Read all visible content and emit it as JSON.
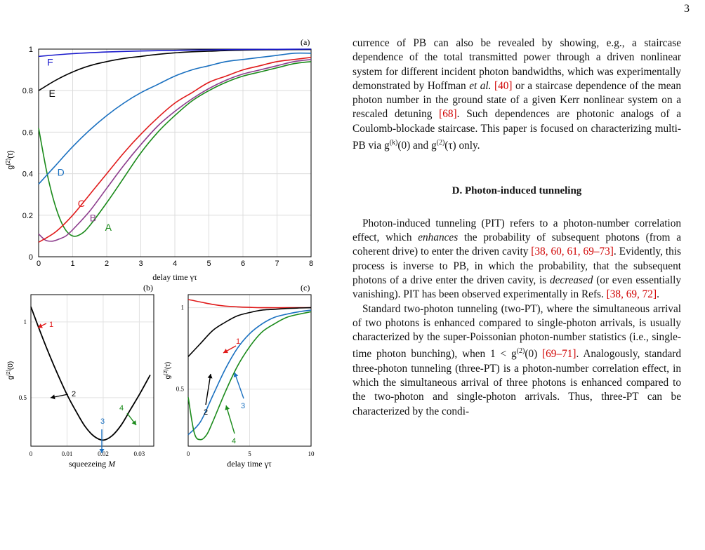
{
  "page_number": "3",
  "colors": {
    "A": "#1a8a1a",
    "B": "#8c3c8c",
    "C": "#e01a1a",
    "D": "#1a70c0",
    "E": "#000000",
    "F": "#1a1acc",
    "cite": "#d00000"
  },
  "chart_data": [
    {
      "panel": "(a)",
      "type": "line",
      "xlabel": "delay time γτ",
      "ylabel": "g(2)(τ)",
      "xlim": [
        0,
        8
      ],
      "ylim": [
        0,
        1
      ],
      "xticks": [
        "0",
        "1",
        "2",
        "3",
        "4",
        "5",
        "6",
        "7",
        "8"
      ],
      "yticks": [
        "0",
        "0.2",
        "0.4",
        "0.6",
        "0.8",
        "1"
      ],
      "grid": true,
      "series": [
        {
          "name": "A",
          "x": [
            0,
            0.25,
            0.5,
            0.75,
            1,
            1.25,
            1.5,
            2,
            2.5,
            3,
            3.5,
            4,
            4.5,
            5,
            5.5,
            6,
            6.5,
            7,
            7.5,
            8
          ],
          "y": [
            0.62,
            0.4,
            0.24,
            0.14,
            0.1,
            0.11,
            0.15,
            0.26,
            0.38,
            0.5,
            0.6,
            0.68,
            0.75,
            0.8,
            0.84,
            0.87,
            0.89,
            0.91,
            0.93,
            0.94
          ]
        },
        {
          "name": "B",
          "x": [
            0,
            0.2,
            0.4,
            0.6,
            0.8,
            1,
            1.5,
            2,
            2.5,
            3,
            3.5,
            4,
            4.5,
            5,
            5.5,
            6,
            6.5,
            7,
            7.5,
            8
          ],
          "y": [
            0.11,
            0.08,
            0.075,
            0.085,
            0.1,
            0.13,
            0.22,
            0.33,
            0.44,
            0.54,
            0.63,
            0.7,
            0.76,
            0.81,
            0.85,
            0.88,
            0.9,
            0.92,
            0.94,
            0.95
          ]
        },
        {
          "name": "C",
          "x": [
            0,
            0.5,
            1,
            1.5,
            2,
            2.5,
            3,
            3.5,
            4,
            4.5,
            5,
            5.5,
            6,
            6.5,
            7,
            7.5,
            8
          ],
          "y": [
            0.07,
            0.12,
            0.2,
            0.3,
            0.4,
            0.5,
            0.59,
            0.67,
            0.74,
            0.79,
            0.84,
            0.87,
            0.9,
            0.92,
            0.94,
            0.95,
            0.96
          ]
        },
        {
          "name": "D",
          "x": [
            0,
            0.5,
            1,
            1.5,
            2,
            2.5,
            3,
            3.5,
            4,
            4.5,
            5,
            5.5,
            6,
            6.5,
            7,
            7.5,
            8
          ],
          "y": [
            0.35,
            0.44,
            0.53,
            0.61,
            0.68,
            0.74,
            0.79,
            0.83,
            0.87,
            0.9,
            0.92,
            0.94,
            0.95,
            0.96,
            0.97,
            0.98,
            0.98
          ]
        },
        {
          "name": "E",
          "x": [
            0,
            0.5,
            1,
            1.5,
            2,
            2.5,
            3,
            3.5,
            4,
            4.5,
            5,
            6,
            7,
            8
          ],
          "y": [
            0.8,
            0.85,
            0.89,
            0.92,
            0.94,
            0.955,
            0.965,
            0.975,
            0.982,
            0.987,
            0.99,
            0.995,
            0.997,
            0.998
          ]
        },
        {
          "name": "F",
          "x": [
            0,
            1,
            2,
            3,
            4,
            5,
            6,
            7,
            8
          ],
          "y": [
            0.965,
            0.978,
            0.986,
            0.991,
            0.994,
            0.996,
            0.998,
            0.999,
            1.0
          ]
        }
      ],
      "labels": [
        "F",
        "E",
        "D",
        "C",
        "B",
        "A"
      ]
    },
    {
      "panel": "(b)",
      "type": "line",
      "xlabel": "squeezeing M",
      "ylabel": "g(2)(0)",
      "xlim": [
        0,
        0.034
      ],
      "ylim": [
        0.18,
        1.18
      ],
      "xticks": [
        "0",
        "0.01",
        "0.02",
        "0.03"
      ],
      "yticks": [
        "0.5",
        "1"
      ],
      "grid": true,
      "series": [
        {
          "name": "curve",
          "x": [
            0,
            0.0025,
            0.005,
            0.0075,
            0.01,
            0.0125,
            0.015,
            0.0175,
            0.02,
            0.0225,
            0.025,
            0.0275,
            0.03,
            0.033
          ],
          "y": [
            1.1,
            0.94,
            0.79,
            0.65,
            0.52,
            0.41,
            0.31,
            0.245,
            0.22,
            0.25,
            0.32,
            0.42,
            0.52,
            0.65
          ]
        }
      ],
      "annotations": [
        "1",
        "2",
        "3",
        "4"
      ]
    },
    {
      "panel": "(c)",
      "type": "line",
      "xlabel": "delay time γτ",
      "ylabel": "g(2)(τ)",
      "xlim": [
        0,
        10
      ],
      "ylim": [
        0.15,
        1.08
      ],
      "xticks": [
        "0",
        "5",
        "10"
      ],
      "yticks": [
        "0.5",
        "1"
      ],
      "grid": true,
      "series": [
        {
          "name": "1",
          "x": [
            0,
            1,
            2,
            3,
            4,
            5,
            6,
            8,
            10
          ],
          "y": [
            1.05,
            1.035,
            1.02,
            1.01,
            1.005,
            1.002,
            1.0,
            1.0,
            1.0
          ]
        },
        {
          "name": "2",
          "x": [
            0,
            1,
            2,
            3,
            4,
            5,
            6,
            7,
            8,
            9,
            10
          ],
          "y": [
            0.7,
            0.78,
            0.86,
            0.91,
            0.95,
            0.97,
            0.985,
            0.99,
            0.995,
            0.998,
            1.0
          ]
        },
        {
          "name": "3",
          "x": [
            0,
            1,
            2,
            3,
            4,
            5,
            6,
            7,
            8,
            9,
            10
          ],
          "y": [
            0.22,
            0.3,
            0.46,
            0.62,
            0.75,
            0.84,
            0.9,
            0.94,
            0.96,
            0.975,
            0.985
          ]
        },
        {
          "name": "4",
          "x": [
            0,
            0.5,
            1,
            1.5,
            2,
            3,
            4,
            5,
            6,
            7,
            8,
            9,
            10
          ],
          "y": [
            0.45,
            0.23,
            0.19,
            0.22,
            0.3,
            0.48,
            0.64,
            0.76,
            0.85,
            0.9,
            0.94,
            0.96,
            0.975
          ]
        }
      ],
      "annotations": [
        "1",
        "2",
        "3",
        "4"
      ]
    }
  ],
  "text": {
    "p1": {
      "a": "currence of PB can also be revealed by showing, e.g., a staircase dependence of the total transmitted power through a driven nonlinear system for different incident photon bandwidths, which was experimentally demonstrated by Hoffman ",
      "et_al": "et al.",
      "b": " ",
      "cite1": "[40]",
      "c": " or a staircase dependence of the mean photon number in the ground state of a given Kerr nonlinear system on a rescaled detuning ",
      "cite2": "[68]",
      "d": ". Such dependences are photonic analogs of a Coulomb-blockade staircase. This paper is focused on characterizing multi-PB via g",
      "sup_k": "(k)",
      "e": "(0) and g",
      "sup_2": "(2)",
      "f": "(τ) only."
    },
    "section_heading": "D.   Photon-induced tunneling",
    "p2": {
      "a": "Photon-induced tunneling (PIT) refers to a photon-number correlation effect, which ",
      "enhances": "enhances",
      "b": " the probability of subsequent photons (from a coherent drive) to enter the driven cavity ",
      "cite": "[38, 60, 61, 69–73]",
      "c": ". Evidently, this process is inverse to PB, in which the probability, that the subsequent photons of a drive enter the driven cavity, is ",
      "decreased": "decreased",
      "d": " (or even essentially vanishing). PIT has been observed experimentally in Refs. ",
      "cite2": "[38, 69, 72]",
      "e": "."
    },
    "p3": {
      "a": "Standard two-photon tunneling (two-PT), where the simultaneous arrival of two photons is enhanced compared to single-photon arrivals, is usually characterized by the super-Poissonian photon-number statistics (i.e., single-time photon bunching), when 1 < g",
      "sup": "(2)",
      "b": "(0) ",
      "cite": "[69–71]",
      "c": ". Analogously, standard three-photon tunneling (three-PT) is a photon-number correlation effect, in which the simultaneous arrival of three photons is enhanced compared to the two-photon and single-photon arrivals. Thus, three-PT can be characterized by the condi-"
    }
  }
}
